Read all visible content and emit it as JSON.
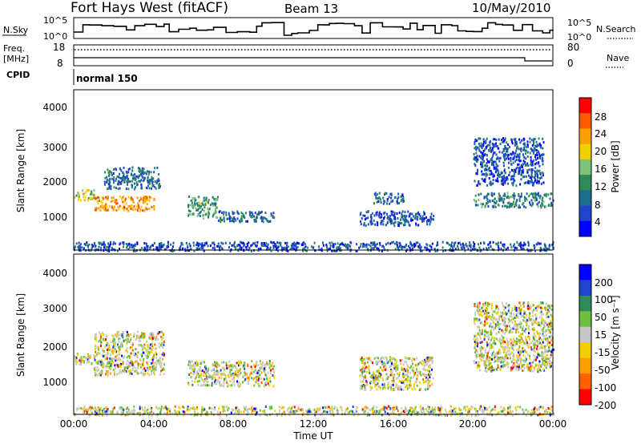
{
  "header": {
    "title": "Fort Hays West (fitACF)",
    "beam": "Beam 13",
    "date": "10/May/2010"
  },
  "top_panels": {
    "nsky_label": "N.Sky",
    "nsky_ticks": [
      "10^5",
      "10^0"
    ],
    "nsearch_ticks": [
      "10^5",
      "10^0"
    ],
    "nsearch_label": "N.Search",
    "freq_label_1": "Freq.",
    "freq_label_2": "[MHz]",
    "freq_ticks": [
      "18",
      "8"
    ],
    "nave_ticks": [
      "80",
      "0"
    ],
    "nave_label": "Nave",
    "cpid_label": "CPID",
    "cpid_text": "normal 150"
  },
  "panels": {
    "ylabel": "Slant Range [km]",
    "yticks": [
      "4000",
      "3000",
      "2000",
      "1000"
    ],
    "xticks": [
      "00:00",
      "04:00",
      "08:00",
      "12:00",
      "16:00",
      "20:00",
      "00:00"
    ],
    "xlabel": "Time UT"
  },
  "colorbars": {
    "power_label": "Power [dB]",
    "power_ticks": [
      "28",
      "24",
      "20",
      "16",
      "12",
      "8",
      "4"
    ],
    "velocity_label": "Velocity [m s⁻¹]",
    "velocity_ticks": [
      "200",
      "100",
      "50",
      "15",
      "-15",
      "-50",
      "-100",
      "-200"
    ]
  },
  "chart_data": {
    "type": "heatmap",
    "title": "Fort Hays West (fitACF)",
    "x_range_hours_ut": [
      0,
      24
    ],
    "y_range_km": [
      200,
      4600
    ],
    "panels": [
      {
        "name": "Power",
        "unit": "dB",
        "colorbar_range": [
          0,
          30
        ],
        "colors": [
          "#0000ff",
          "#2244cc",
          "#1a6e8c",
          "#2e8b57",
          "#7cc47c",
          "#f0d000",
          "#ff9f00",
          "#ff5a00",
          "#ff0000"
        ],
        "regions": [
          {
            "t": [
              0.0,
              1.0
            ],
            "r": [
              1600,
              1900
            ],
            "level": 16
          },
          {
            "t": [
              1.0,
              4.0
            ],
            "r": [
              1300,
              1700
            ],
            "level": 22
          },
          {
            "t": [
              1.5,
              4.3
            ],
            "r": [
              1900,
              2500
            ],
            "level": 8
          },
          {
            "t": [
              5.7,
              7.2
            ],
            "r": [
              1100,
              1700
            ],
            "level": 12
          },
          {
            "t": [
              7.2,
              10.0
            ],
            "r": [
              1000,
              1300
            ],
            "level": 8
          },
          {
            "t": [
              14.3,
              18.0
            ],
            "r": [
              900,
              1300
            ],
            "level": 6
          },
          {
            "t": [
              15.0,
              16.5
            ],
            "r": [
              1500,
              1800
            ],
            "level": 8
          },
          {
            "t": [
              20.0,
              24.0
            ],
            "r": [
              1400,
              1800
            ],
            "level": 10
          },
          {
            "t": [
              20.0,
              23.5
            ],
            "r": [
              2000,
              3300
            ],
            "level": 6
          },
          {
            "t": [
              0.0,
              24.0
            ],
            "r": [
              200,
              450
            ],
            "level": 6
          }
        ]
      },
      {
        "name": "Velocity",
        "unit": "m s-1",
        "colorbar_range": [
          -250,
          250
        ],
        "colors": [
          "#ff0000",
          "#ff6000",
          "#ffa000",
          "#f0d000",
          "#c8c8c8",
          "#70c040",
          "#2e8b57",
          "#2244cc",
          "#0000ff"
        ],
        "regions": [
          {
            "t": [
              0.0,
              1.2
            ],
            "r": [
              1600,
              1900
            ],
            "level": 0
          },
          {
            "t": [
              1.0,
              4.5
            ],
            "r": [
              1300,
              2500
            ],
            "level": 0
          },
          {
            "t": [
              5.7,
              10.0
            ],
            "r": [
              1000,
              1700
            ],
            "level": 0
          },
          {
            "t": [
              14.3,
              18.0
            ],
            "r": [
              900,
              1800
            ],
            "level": 0
          },
          {
            "t": [
              20.0,
              24.0
            ],
            "r": [
              1400,
              3300
            ],
            "level": 0
          },
          {
            "t": [
              0.0,
              24.0
            ],
            "r": [
              200,
              450
            ],
            "level": 0
          }
        ]
      }
    ]
  }
}
